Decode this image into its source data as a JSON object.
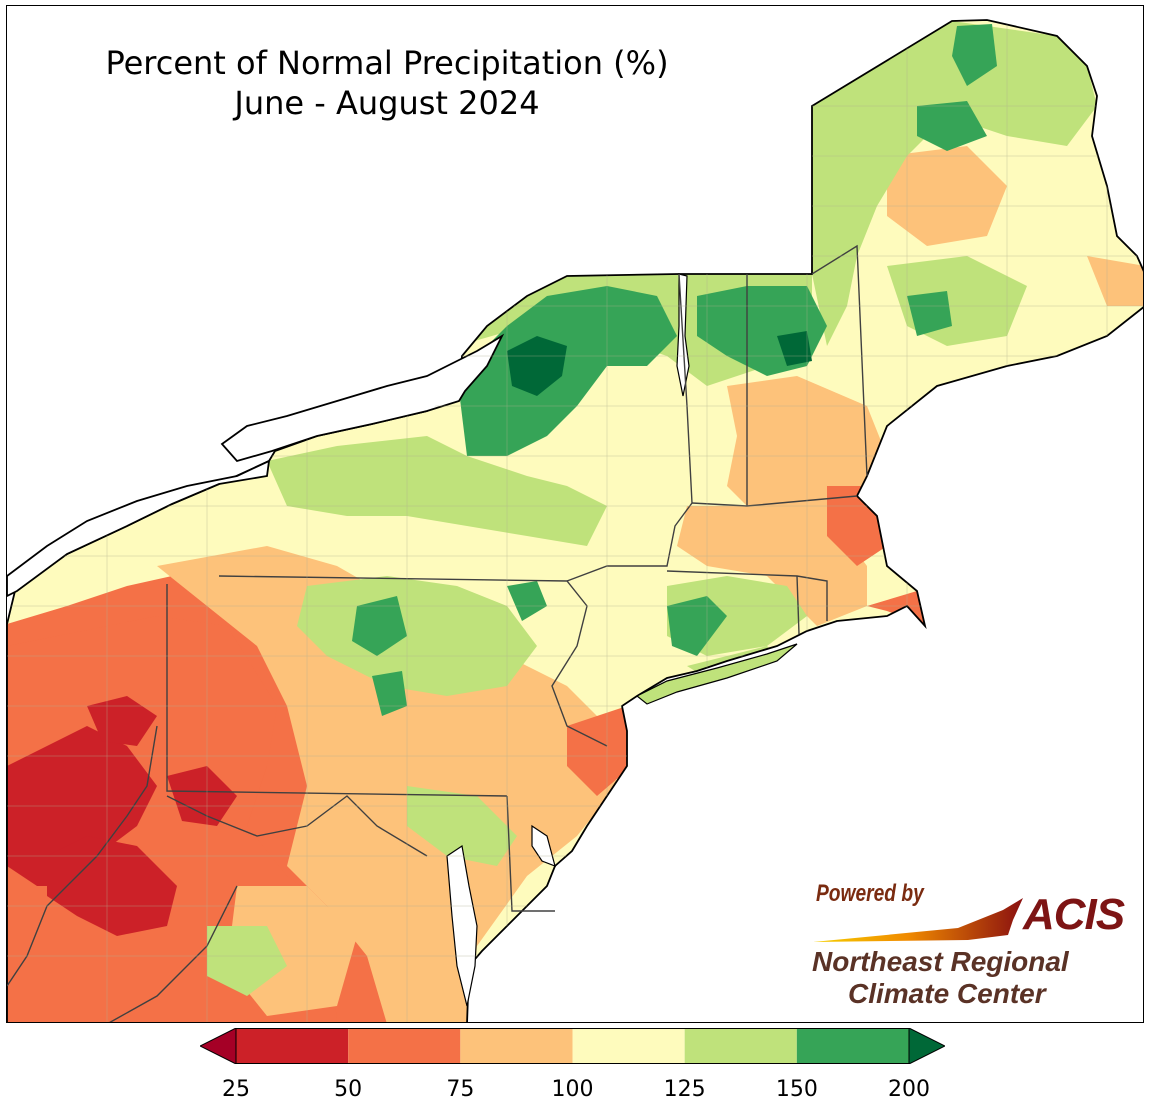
{
  "header": {
    "title": "Percent of Normal Precipitation (%)",
    "subtitle": "June - August 2024"
  },
  "logo": {
    "powered_by": "Powered by",
    "acis": "ACIS",
    "org_line1": "Northeast Regional",
    "org_line2": "Climate Center"
  },
  "legend": {
    "bins": [
      {
        "from": 25,
        "to": 50,
        "color": "#cc2128"
      },
      {
        "from": 50,
        "to": 75,
        "color": "#f47147"
      },
      {
        "from": 75,
        "to": 100,
        "color": "#fdc27a"
      },
      {
        "from": 100,
        "to": 125,
        "color": "#fefbbd"
      },
      {
        "from": 125,
        "to": 150,
        "color": "#bfe27b"
      },
      {
        "from": 150,
        "to": 200,
        "color": "#36a457"
      }
    ],
    "under_color": "#a50026",
    "over_color": "#006837",
    "ticks": [
      "25",
      "50",
      "75",
      "100",
      "125",
      "150",
      "200"
    ]
  },
  "colors": {
    "water": "#ffffff",
    "outline": "#000000",
    "state_line": "#404040",
    "county_line": "#b0b090"
  }
}
